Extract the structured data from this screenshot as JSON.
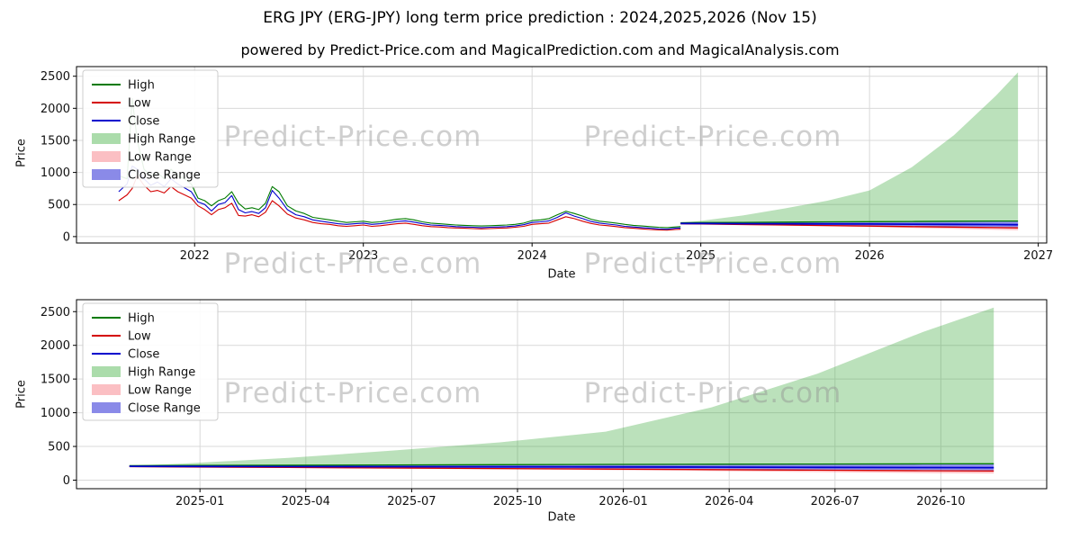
{
  "page": {
    "title": "ERG JPY (ERG-JPY) long term price prediction : 2024,2025,2026 (Nov 15)",
    "subtitle": "powered by Predict-Price.com and MagicalPrediction.com and MagicalAnalysis.com",
    "watermark_text": "Predict-Price.com"
  },
  "colors": {
    "high": "#007A00",
    "low": "#D40000",
    "close": "#0000CD",
    "high_range_fill": "rgba(60,170,60,0.35)",
    "low_range_fill": "rgba(255,110,120,0.40)",
    "close_range_fill": "rgba(70,70,225,0.60)",
    "grid": "#d9d9d9",
    "legend_border": "#cccccc",
    "watermark": "#8e8e8e"
  },
  "legend": [
    {
      "label": "High",
      "type": "line",
      "color": "#007A00"
    },
    {
      "label": "Low",
      "type": "line",
      "color": "#D40000"
    },
    {
      "label": "Close",
      "type": "line",
      "color": "#0000CD"
    },
    {
      "label": "High Range",
      "type": "patch",
      "color": "#ABDCAB"
    },
    {
      "label": "Low Range",
      "type": "patch",
      "color": "#FBBFC3"
    },
    {
      "label": "Close Range",
      "type": "patch",
      "color": "#8A8AE8"
    }
  ],
  "chart_data": [
    {
      "type": "line",
      "name": "history-and-long-term-prediction",
      "xlabel": "Date",
      "ylabel": "Price",
      "xlim": [
        2021.3,
        2027.05
      ],
      "ylim": [
        -100,
        2650
      ],
      "xticks": [
        {
          "v": 2022,
          "label": "2022"
        },
        {
          "v": 2023,
          "label": "2023"
        },
        {
          "v": 2024,
          "label": "2024"
        },
        {
          "v": 2025,
          "label": "2025"
        },
        {
          "v": 2026,
          "label": "2026"
        },
        {
          "v": 2027,
          "label": "2027"
        }
      ],
      "yticks": [
        {
          "v": 0,
          "label": "0"
        },
        {
          "v": 500,
          "label": "500"
        },
        {
          "v": 1000,
          "label": "1000"
        },
        {
          "v": 1500,
          "label": "1500"
        },
        {
          "v": 2000,
          "label": "2000"
        },
        {
          "v": 2500,
          "label": "2500"
        }
      ],
      "history": {
        "x": [
          2021.55,
          2021.6,
          2021.63,
          2021.66,
          2021.7,
          2021.74,
          2021.78,
          2021.82,
          2021.86,
          2021.9,
          2021.94,
          2021.98,
          2022.02,
          2022.06,
          2022.1,
          2022.14,
          2022.18,
          2022.22,
          2022.26,
          2022.3,
          2022.34,
          2022.38,
          2022.42,
          2022.46,
          2022.5,
          2022.55,
          2022.6,
          2022.65,
          2022.7,
          2022.75,
          2022.8,
          2022.85,
          2022.9,
          2022.95,
          2023.0,
          2023.05,
          2023.1,
          2023.15,
          2023.2,
          2023.25,
          2023.3,
          2023.35,
          2023.4,
          2023.45,
          2023.5,
          2023.55,
          2023.6,
          2023.65,
          2023.7,
          2023.75,
          2023.8,
          2023.85,
          2023.9,
          2023.95,
          2024.0,
          2024.05,
          2024.1,
          2024.15,
          2024.2,
          2024.25,
          2024.3,
          2024.35,
          2024.4,
          2024.45,
          2024.5,
          2024.55,
          2024.6,
          2024.65,
          2024.7,
          2024.75,
          2024.8,
          2024.85,
          2024.88
        ],
        "high": [
          950,
          900,
          2150,
          1500,
          1050,
          950,
          1000,
          900,
          1050,
          950,
          900,
          820,
          600,
          560,
          480,
          560,
          600,
          700,
          520,
          430,
          450,
          420,
          520,
          780,
          700,
          480,
          400,
          360,
          300,
          280,
          260,
          240,
          220,
          230,
          240,
          220,
          230,
          250,
          270,
          280,
          260,
          230,
          210,
          200,
          190,
          180,
          175,
          170,
          165,
          170,
          175,
          180,
          190,
          210,
          250,
          260,
          280,
          340,
          395,
          360,
          320,
          270,
          240,
          225,
          210,
          190,
          175,
          165,
          155,
          145,
          140,
          150,
          155
        ],
        "low": [
          560,
          650,
          750,
          950,
          800,
          700,
          720,
          680,
          780,
          700,
          650,
          600,
          480,
          420,
          340,
          420,
          450,
          520,
          330,
          320,
          340,
          310,
          380,
          560,
          480,
          350,
          290,
          260,
          220,
          200,
          190,
          170,
          160,
          170,
          180,
          160,
          170,
          185,
          200,
          210,
          190,
          170,
          155,
          150,
          140,
          135,
          130,
          125,
          120,
          125,
          130,
          135,
          145,
          160,
          190,
          200,
          210,
          260,
          310,
          280,
          240,
          205,
          180,
          170,
          155,
          140,
          130,
          120,
          110,
          105,
          100,
          110,
          115
        ],
        "close": [
          700,
          820,
          1100,
          1050,
          900,
          800,
          850,
          780,
          900,
          820,
          760,
          700,
          540,
          500,
          400,
          500,
          530,
          640,
          420,
          370,
          390,
          360,
          450,
          720,
          600,
          420,
          340,
          310,
          260,
          240,
          220,
          200,
          190,
          200,
          210,
          190,
          200,
          215,
          235,
          245,
          225,
          200,
          180,
          175,
          165,
          155,
          150,
          145,
          140,
          145,
          150,
          155,
          165,
          185,
          220,
          230,
          245,
          300,
          370,
          320,
          280,
          235,
          210,
          195,
          180,
          160,
          150,
          140,
          130,
          120,
          115,
          130,
          135
        ]
      },
      "forecast": {
        "x": [
          2024.88,
          2025.0,
          2025.25,
          2025.5,
          2025.75,
          2026.0,
          2026.25,
          2026.5,
          2026.75,
          2026.88
        ],
        "high_range_top": [
          215,
          245,
          330,
          440,
          560,
          720,
          1080,
          1580,
          2200,
          2560
        ],
        "close_range_top": [
          215,
          218,
          222,
          226,
          230,
          233,
          236,
          239,
          242,
          243
        ],
        "close_line": [
          205,
          204,
          202,
          200,
          198,
          196,
          193,
          190,
          187,
          185
        ],
        "close_range_bottom": [
          196,
          193,
          188,
          182,
          176,
          170,
          163,
          157,
          150,
          147
        ],
        "low_line": [
          200,
          196,
          188,
          180,
          172,
          164,
          156,
          148,
          140,
          136
        ],
        "low_range_bottom": [
          196,
          190,
          180,
          170,
          160,
          148,
          135,
          120,
          105,
          98
        ]
      }
    },
    {
      "type": "line",
      "name": "prediction-zoom-2024-11-to-2026-11",
      "xlabel": "Date",
      "ylabel": "Price",
      "xlim": [
        -1.5,
        26
      ],
      "ylim": [
        -127,
        2677
      ],
      "xticks": [
        {
          "v": 2,
          "label": "2025-01"
        },
        {
          "v": 5,
          "label": "2025-04"
        },
        {
          "v": 8,
          "label": "2025-07"
        },
        {
          "v": 11,
          "label": "2025-10"
        },
        {
          "v": 14,
          "label": "2026-01"
        },
        {
          "v": 17,
          "label": "2026-04"
        },
        {
          "v": 20,
          "label": "2026-07"
        },
        {
          "v": 23,
          "label": "2026-10"
        }
      ],
      "yticks": [
        {
          "v": 0,
          "label": "0"
        },
        {
          "v": 500,
          "label": "500"
        },
        {
          "v": 1000,
          "label": "1000"
        },
        {
          "v": 1500,
          "label": "1500"
        },
        {
          "v": 2000,
          "label": "2000"
        },
        {
          "v": 2500,
          "label": "2500"
        }
      ],
      "forecast": {
        "x": [
          0,
          1.5,
          4.5,
          7.5,
          10.5,
          13.5,
          16.5,
          19.5,
          22.5,
          24.5
        ],
        "high_range_top": [
          215,
          245,
          330,
          440,
          560,
          720,
          1080,
          1580,
          2200,
          2560
        ],
        "close_range_top": [
          215,
          218,
          222,
          226,
          230,
          233,
          236,
          239,
          242,
          243
        ],
        "close_line": [
          205,
          204,
          202,
          200,
          198,
          196,
          193,
          190,
          187,
          185
        ],
        "close_range_bottom": [
          196,
          193,
          188,
          182,
          176,
          170,
          163,
          157,
          150,
          147
        ],
        "low_line": [
          200,
          196,
          188,
          180,
          172,
          164,
          156,
          148,
          140,
          136
        ],
        "low_range_bottom": [
          196,
          190,
          180,
          170,
          160,
          148,
          135,
          120,
          105,
          98
        ]
      }
    }
  ]
}
